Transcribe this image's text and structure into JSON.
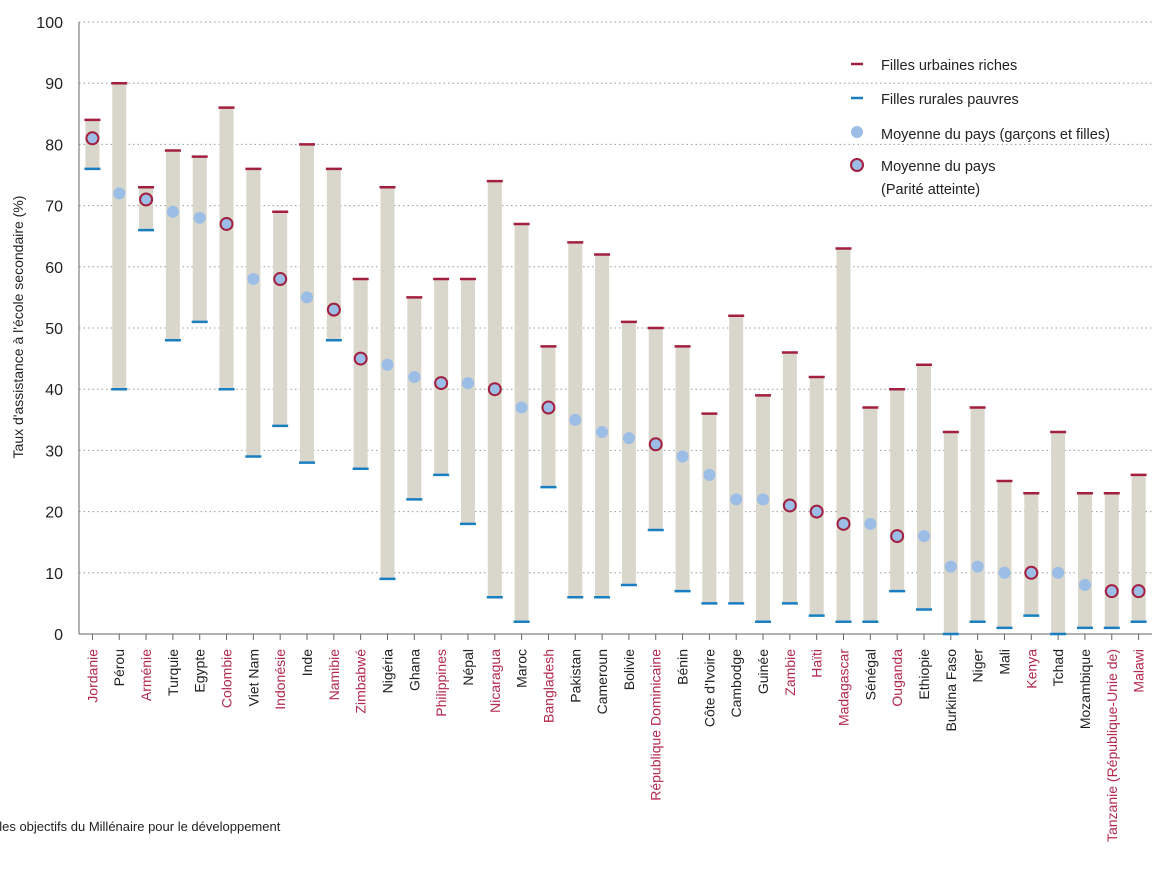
{
  "colors": {
    "bar": "#d9d7cc",
    "rich": "#a31f3f",
    "poor": "#1a7fc1",
    "avg": "#9bbde6",
    "parity_fill": "#9bbde6",
    "parity_ring": "#a31f3f",
    "parity_label": "#b3294f",
    "grid": "#9a9a9a"
  },
  "legend": {
    "rich": "Filles urbaines riches",
    "poor": "Filles rurales pauvres",
    "avg": "Moyenne du pays (garçons et filles)",
    "parity_line1": "Moyenne du pays",
    "parity_line2": "(Parité atteinte)"
  },
  "footer_text": "t les objectifs du Millénaire pour le développement",
  "chart_data": {
    "type": "range-bar",
    "ylabel": "Taux d'assistance à l'école secondaire (%)",
    "ylim": [
      0,
      100
    ],
    "yticks": [
      "0",
      "10",
      "20",
      "30",
      "40",
      "50",
      "60",
      "70",
      "80",
      "90",
      "100"
    ],
    "grid": "horizontal dotted",
    "legend_position": "top-right",
    "countries": [
      {
        "name": "Jordanie",
        "rich": 84,
        "poor": 76,
        "avg": 81,
        "parity": true
      },
      {
        "name": "Pérou",
        "rich": 90,
        "poor": 40,
        "avg": 72,
        "parity": false
      },
      {
        "name": "Arménie",
        "rich": 73,
        "poor": 66,
        "avg": 71,
        "parity": true
      },
      {
        "name": "Turquie",
        "rich": 79,
        "poor": 48,
        "avg": 69,
        "parity": false
      },
      {
        "name": "Egypte",
        "rich": 78,
        "poor": 51,
        "avg": 68,
        "parity": false
      },
      {
        "name": "Colombie",
        "rich": 86,
        "poor": 40,
        "avg": 67,
        "parity": true
      },
      {
        "name": "Viet Nam",
        "rich": 76,
        "poor": 29,
        "avg": 58,
        "parity": false
      },
      {
        "name": "Indonésie",
        "rich": 69,
        "poor": 34,
        "avg": 58,
        "parity": true
      },
      {
        "name": "Inde",
        "rich": 80,
        "poor": 28,
        "avg": 55,
        "parity": false
      },
      {
        "name": "Namibie",
        "rich": 76,
        "poor": 48,
        "avg": 53,
        "parity": true
      },
      {
        "name": "Zimbabwé",
        "rich": 58,
        "poor": 27,
        "avg": 45,
        "parity": true
      },
      {
        "name": "Nigéria",
        "rich": 73,
        "poor": 9,
        "avg": 44,
        "parity": false
      },
      {
        "name": "Ghana",
        "rich": 55,
        "poor": 22,
        "avg": 42,
        "parity": false
      },
      {
        "name": "Philippines",
        "rich": 58,
        "poor": 26,
        "avg": 41,
        "parity": true
      },
      {
        "name": "Népal",
        "rich": 58,
        "poor": 18,
        "avg": 41,
        "parity": false
      },
      {
        "name": "Nicaragua",
        "rich": 74,
        "poor": 6,
        "avg": 40,
        "parity": true
      },
      {
        "name": "Maroc",
        "rich": 67,
        "poor": 2,
        "avg": 37,
        "parity": false
      },
      {
        "name": "Bangladesh",
        "rich": 47,
        "poor": 24,
        "avg": 37,
        "parity": true
      },
      {
        "name": "Pakistan",
        "rich": 64,
        "poor": 6,
        "avg": 35,
        "parity": false
      },
      {
        "name": "Cameroun",
        "rich": 62,
        "poor": 6,
        "avg": 33,
        "parity": false
      },
      {
        "name": "Bolivie",
        "rich": 51,
        "poor": 8,
        "avg": 32,
        "parity": false
      },
      {
        "name": "République Dominicaine",
        "rich": 50,
        "poor": 17,
        "avg": 31,
        "parity": true
      },
      {
        "name": "Bénin",
        "rich": 47,
        "poor": 7,
        "avg": 29,
        "parity": false
      },
      {
        "name": "Côte d'Ivoire",
        "rich": 36,
        "poor": 5,
        "avg": 26,
        "parity": false
      },
      {
        "name": "Cambodge",
        "rich": 52,
        "poor": 5,
        "avg": 22,
        "parity": false
      },
      {
        "name": "Guinée",
        "rich": 39,
        "poor": 2,
        "avg": 22,
        "parity": false
      },
      {
        "name": "Zambie",
        "rich": 46,
        "poor": 5,
        "avg": 21,
        "parity": true
      },
      {
        "name": "Haïti",
        "rich": 42,
        "poor": 3,
        "avg": 20,
        "parity": true
      },
      {
        "name": "Madagascar",
        "rich": 63,
        "poor": 2,
        "avg": 18,
        "parity": true
      },
      {
        "name": "Sénégal",
        "rich": 37,
        "poor": 2,
        "avg": 18,
        "parity": false
      },
      {
        "name": "Ouganda",
        "rich": 40,
        "poor": 7,
        "avg": 16,
        "parity": true
      },
      {
        "name": "Ethiopie",
        "rich": 44,
        "poor": 4,
        "avg": 16,
        "parity": false
      },
      {
        "name": "Burkina Faso",
        "rich": 33,
        "poor": 0,
        "avg": 11,
        "parity": false
      },
      {
        "name": "Niger",
        "rich": 37,
        "poor": 2,
        "avg": 11,
        "parity": false
      },
      {
        "name": "Mali",
        "rich": 25,
        "poor": 1,
        "avg": 10,
        "parity": false
      },
      {
        "name": "Kenya",
        "rich": 23,
        "poor": 3,
        "avg": 10,
        "parity": true
      },
      {
        "name": "Tchad",
        "rich": 33,
        "poor": 0,
        "avg": 10,
        "parity": false
      },
      {
        "name": "Mozambique",
        "rich": 23,
        "poor": 1,
        "avg": 8,
        "parity": false
      },
      {
        "name": "Tanzanie (République-Unie de)",
        "rich": 23,
        "poor": 1,
        "avg": 7,
        "parity": true
      },
      {
        "name": "Malawi",
        "rich": 26,
        "poor": 2,
        "avg": 7,
        "parity": true
      }
    ]
  }
}
